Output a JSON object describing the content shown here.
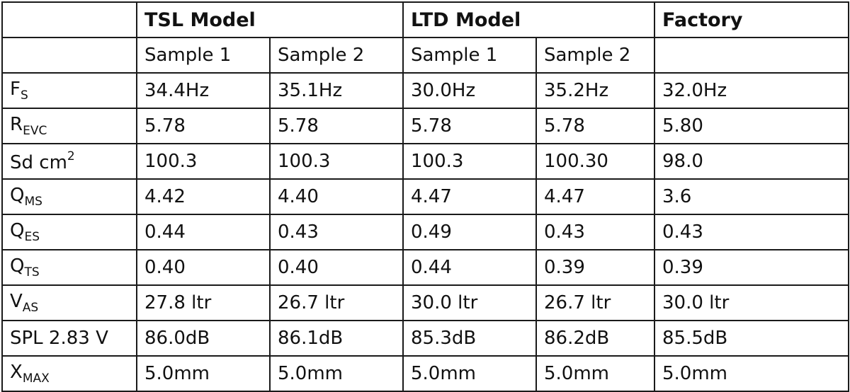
{
  "header": {
    "corner": "",
    "groups": [
      "TSL Model",
      "LTD Model",
      "Factory"
    ]
  },
  "subheader": [
    "",
    "Sample 1",
    "Sample 2",
    "Sample 1",
    "Sample 2",
    ""
  ],
  "rows": [
    {
      "label": {
        "main": "F",
        "sub": "S",
        "sup": "",
        "tail": ""
      },
      "values": [
        "34.4Hz",
        "35.1Hz",
        "30.0Hz",
        "35.2Hz",
        "32.0Hz"
      ]
    },
    {
      "label": {
        "main": "R",
        "sub": "EVC",
        "sup": "",
        "tail": ""
      },
      "values": [
        "5.78",
        "5.78",
        "5.78",
        "5.78",
        "5.80"
      ]
    },
    {
      "label": {
        "main": "Sd cm",
        "sub": "",
        "sup": "2",
        "tail": ""
      },
      "values": [
        "100.3",
        "100.3",
        "100.3",
        "100.30",
        "98.0"
      ]
    },
    {
      "label": {
        "main": "Q",
        "sub": "MS",
        "sup": "",
        "tail": ""
      },
      "values": [
        "4.42",
        "4.40",
        "4.47",
        "4.47",
        "3.6"
      ]
    },
    {
      "label": {
        "main": "Q",
        "sub": "ES",
        "sup": "",
        "tail": ""
      },
      "values": [
        "0.44",
        "0.43",
        "0.49",
        "0.43",
        "0.43"
      ]
    },
    {
      "label": {
        "main": "Q",
        "sub": "TS",
        "sup": "",
        "tail": ""
      },
      "values": [
        "0.40",
        "0.40",
        "0.44",
        "0.39",
        "0.39"
      ]
    },
    {
      "label": {
        "main": "V",
        "sub": "AS",
        "sup": "",
        "tail": ""
      },
      "values": [
        "27.8 ltr",
        "26.7 ltr",
        "30.0 ltr",
        "26.7 ltr",
        "30.0 ltr"
      ]
    },
    {
      "label": {
        "main": "SPL 2.83 V",
        "sub": "",
        "sup": "",
        "tail": ""
      },
      "values": [
        "86.0dB",
        "86.1dB",
        "85.3dB",
        "86.2dB",
        "85.5dB"
      ]
    },
    {
      "label": {
        "main": "X",
        "sub": "MAX",
        "sup": "",
        "tail": ""
      },
      "values": [
        "5.0mm",
        "5.0mm",
        "5.0mm",
        "5.0mm",
        "5.0mm"
      ]
    }
  ]
}
